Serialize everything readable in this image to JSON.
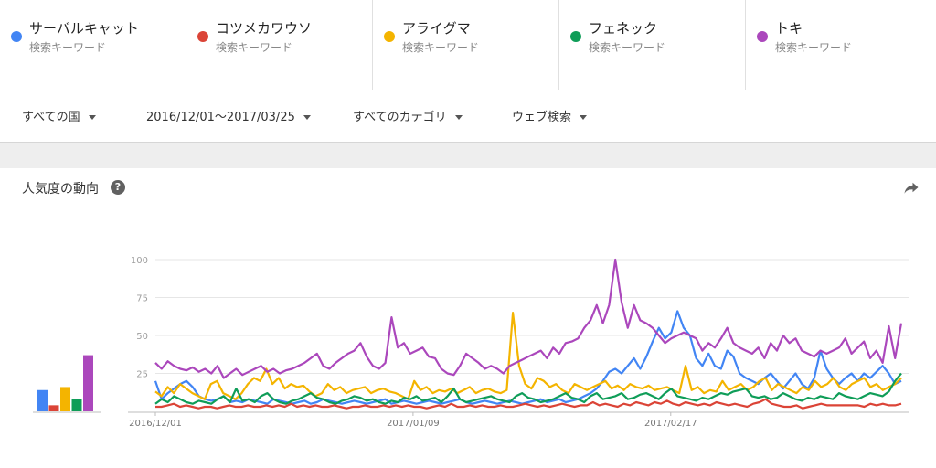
{
  "terms": [
    {
      "name": "サーバルキャット",
      "sub": "検索キーワード",
      "color": "#4285f4"
    },
    {
      "name": "コツメカワウソ",
      "sub": "検索キーワード",
      "color": "#db4437"
    },
    {
      "name": "アライグマ",
      "sub": "検索キーワード",
      "color": "#f4b400"
    },
    {
      "name": "フェネック",
      "sub": "検索キーワード",
      "color": "#0f9d58"
    },
    {
      "name": "トキ",
      "sub": "検索キーワード",
      "color": "#ab47bc"
    }
  ],
  "filters": {
    "region": "すべての国",
    "date": "2016/12/01～2017/03/25",
    "category": "すべてのカテゴリ",
    "property": "ウェブ検索"
  },
  "card": {
    "title": "人気度の動向",
    "help_icon": "question-icon",
    "share_icon": "share-icon"
  },
  "chart_data": {
    "type": "line",
    "x_start": "2016/12/01",
    "x_end": "2017/03/25",
    "x_ticks": [
      "2016/12/01",
      "2017/01/09",
      "2017/02/17"
    ],
    "y_ticks": [
      "100",
      "75",
      "50",
      "25"
    ],
    "ylim": [
      0,
      100
    ],
    "grid": true,
    "series": [
      {
        "name": "サーバルキャット",
        "color": "#4285f4",
        "average": 14,
        "values": [
          20,
          8,
          12,
          15,
          18,
          20,
          16,
          10,
          8,
          7,
          8,
          10,
          6,
          7,
          6,
          8,
          7,
          6,
          5,
          8,
          7,
          6,
          5,
          6,
          7,
          5,
          6,
          8,
          7,
          6,
          5,
          6,
          7,
          6,
          5,
          6,
          7,
          8,
          5,
          6,
          7,
          6,
          5,
          6,
          7,
          6,
          5,
          6,
          7,
          8,
          6,
          5,
          6,
          7,
          6,
          5,
          6,
          7,
          6,
          5,
          6,
          7,
          8,
          6,
          7,
          8,
          6,
          7,
          8,
          10,
          12,
          15,
          20,
          26,
          28,
          25,
          30,
          35,
          28,
          36,
          46,
          55,
          48,
          52,
          66,
          55,
          50,
          35,
          30,
          38,
          30,
          28,
          40,
          36,
          25,
          22,
          20,
          18,
          22,
          25,
          20,
          15,
          20,
          25,
          18,
          15,
          22,
          40,
          28,
          22,
          18,
          22,
          25,
          20,
          25,
          22,
          26,
          30,
          25,
          18,
          20
        ]
      },
      {
        "name": "コツメカワウソ",
        "color": "#db4437",
        "average": 4,
        "values": [
          3,
          3,
          4,
          5,
          3,
          4,
          3,
          2,
          3,
          3,
          2,
          3,
          4,
          3,
          3,
          4,
          3,
          3,
          4,
          3,
          4,
          3,
          5,
          3,
          4,
          3,
          4,
          3,
          3,
          4,
          3,
          2,
          3,
          3,
          4,
          3,
          3,
          4,
          3,
          4,
          3,
          4,
          3,
          3,
          2,
          3,
          4,
          3,
          5,
          3,
          3,
          4,
          3,
          4,
          3,
          3,
          4,
          3,
          3,
          4,
          5,
          4,
          3,
          4,
          3,
          4,
          5,
          4,
          3,
          4,
          4,
          6,
          4,
          5,
          4,
          3,
          5,
          4,
          6,
          5,
          4,
          6,
          5,
          7,
          5,
          4,
          6,
          5,
          4,
          5,
          4,
          6,
          5,
          4,
          5,
          4,
          3,
          5,
          6,
          8,
          5,
          4,
          3,
          3,
          4,
          2,
          3,
          4,
          5,
          4,
          4,
          4,
          4,
          4,
          4,
          3,
          5,
          4,
          5,
          4,
          4,
          5
        ]
      },
      {
        "name": "アライグマ",
        "color": "#f4b400",
        "average": 16,
        "values": [
          13,
          10,
          16,
          12,
          18,
          15,
          12,
          10,
          8,
          18,
          20,
          12,
          10,
          8,
          12,
          18,
          22,
          20,
          28,
          18,
          22,
          15,
          18,
          16,
          17,
          13,
          10,
          12,
          18,
          14,
          16,
          12,
          14,
          15,
          16,
          12,
          14,
          15,
          13,
          12,
          10,
          8,
          20,
          14,
          16,
          12,
          14,
          13,
          15,
          12,
          14,
          16,
          12,
          14,
          15,
          13,
          12,
          14,
          65,
          30,
          18,
          15,
          22,
          20,
          16,
          18,
          14,
          12,
          18,
          16,
          14,
          16,
          18,
          20,
          15,
          17,
          14,
          18,
          16,
          15,
          17,
          14,
          15,
          16,
          14,
          12,
          30,
          14,
          16,
          12,
          14,
          13,
          20,
          14,
          16,
          18,
          14,
          16,
          20,
          22,
          14,
          18,
          16,
          14,
          12,
          16,
          14,
          20,
          16,
          18,
          22,
          16,
          14,
          18,
          20,
          22,
          16,
          18,
          14,
          16,
          18,
          22
        ]
      },
      {
        "name": "フェネック",
        "color": "#0f9d58",
        "average": 8,
        "values": [
          5,
          8,
          6,
          10,
          8,
          6,
          5,
          7,
          6,
          5,
          8,
          10,
          6,
          15,
          7,
          8,
          6,
          10,
          12,
          8,
          6,
          5,
          7,
          8,
          10,
          12,
          9,
          8,
          6,
          5,
          7,
          8,
          10,
          9,
          7,
          8,
          6,
          5,
          7,
          6,
          9,
          8,
          10,
          7,
          8,
          9,
          6,
          10,
          15,
          8,
          6,
          7,
          8,
          9,
          10,
          8,
          7,
          6,
          10,
          12,
          9,
          8,
          6,
          7,
          8,
          10,
          12,
          9,
          8,
          6,
          10,
          12,
          8,
          9,
          10,
          12,
          8,
          9,
          11,
          12,
          10,
          8,
          12,
          15,
          10,
          9,
          8,
          7,
          9,
          8,
          10,
          12,
          11,
          13,
          14,
          15,
          10,
          9,
          10,
          8,
          9,
          12,
          10,
          8,
          7,
          9,
          8,
          10,
          9,
          8,
          12,
          10,
          9,
          8,
          10,
          12,
          11,
          10,
          13,
          20,
          25
        ]
      },
      {
        "name": "トキ",
        "color": "#ab47bc",
        "average": 37,
        "values": [
          32,
          28,
          33,
          30,
          28,
          27,
          29,
          26,
          28,
          25,
          30,
          22,
          25,
          28,
          24,
          26,
          28,
          30,
          26,
          28,
          25,
          27,
          28,
          30,
          32,
          35,
          38,
          30,
          28,
          32,
          35,
          38,
          40,
          45,
          36,
          30,
          28,
          32,
          62,
          42,
          45,
          38,
          40,
          42,
          36,
          35,
          28,
          25,
          24,
          30,
          38,
          35,
          32,
          28,
          30,
          28,
          25,
          30,
          32,
          34,
          36,
          38,
          40,
          35,
          42,
          38,
          45,
          46,
          48,
          55,
          60,
          70,
          58,
          70,
          100,
          72,
          55,
          70,
          60,
          58,
          55,
          50,
          45,
          48,
          50,
          52,
          50,
          48,
          40,
          45,
          42,
          48,
          55,
          45,
          42,
          40,
          38,
          42,
          35,
          45,
          40,
          50,
          45,
          48,
          40,
          38,
          36,
          40,
          38,
          40,
          42,
          48,
          38,
          42,
          46,
          35,
          40,
          32,
          56,
          35,
          58
        ]
      }
    ]
  }
}
